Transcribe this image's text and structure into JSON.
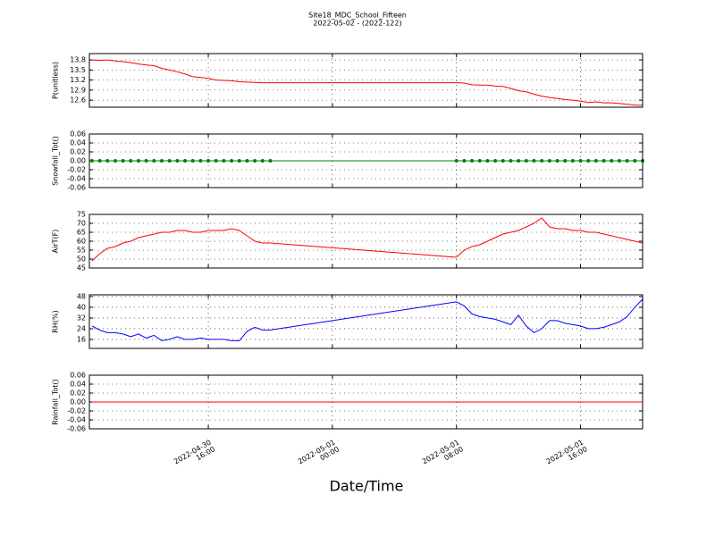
{
  "title": "Site18_MDC_School_Fifteen",
  "subtitle": "2022-05-02 - (2022-122)",
  "xlabel": "Date/Time",
  "chart_data": [
    {
      "type": "line",
      "ylabel": "P(unitless)",
      "grid": true,
      "x": [
        "2022-04-30 08:30",
        "2022-04-30 09:00",
        "2022-04-30 09:30",
        "2022-04-30 10:00",
        "2022-04-30 10:30",
        "2022-04-30 11:00",
        "2022-04-30 11:30",
        "2022-04-30 12:00",
        "2022-04-30 12:30",
        "2022-04-30 13:00",
        "2022-04-30 13:30",
        "2022-04-30 14:00",
        "2022-04-30 14:30",
        "2022-04-30 15:00",
        "2022-04-30 15:30",
        "2022-04-30 16:00",
        "2022-04-30 16:30",
        "2022-04-30 17:00",
        "2022-04-30 17:30",
        "2022-04-30 18:00",
        "2022-04-30 18:30",
        "2022-04-30 19:00",
        "2022-04-30 19:30",
        "2022-04-30 20:00",
        "2022-05-01 08:00",
        "2022-05-01 08:30",
        "2022-05-01 09:00",
        "2022-05-01 09:30",
        "2022-05-01 10:00",
        "2022-05-01 10:30",
        "2022-05-01 11:00",
        "2022-05-01 11:30",
        "2022-05-01 12:00",
        "2022-05-01 12:30",
        "2022-05-01 13:00",
        "2022-05-01 13:30",
        "2022-05-01 14:00",
        "2022-05-01 14:30",
        "2022-05-01 15:00",
        "2022-05-01 15:30",
        "2022-05-01 16:00",
        "2022-05-01 16:30",
        "2022-05-01 17:00",
        "2022-05-01 17:30",
        "2022-05-01 18:00",
        "2022-05-01 18:30",
        "2022-05-01 19:00",
        "2022-05-01 19:30",
        "2022-05-01 20:00"
      ],
      "xlim": [
        "2022-04-30 08:20",
        "2022-05-01 20:00"
      ],
      "xticks": [
        "2022-04-30 16:00",
        "2022-05-01 00:00",
        "2022-05-01 08:00",
        "2022-05-01 16:00"
      ],
      "ylim": [
        12.39,
        13.99
      ],
      "yticks": [
        12.6,
        12.9,
        13.2,
        13.5,
        13.8
      ],
      "series": [
        {
          "color": "#ff0000",
          "values": [
            13.8,
            13.79,
            13.8,
            13.77,
            13.75,
            13.72,
            13.68,
            13.65,
            13.63,
            13.55,
            13.5,
            13.45,
            13.38,
            13.3,
            13.28,
            13.25,
            13.2,
            13.19,
            13.18,
            13.15,
            13.14,
            13.13,
            13.12,
            13.12,
            13.12,
            13.11,
            13.06,
            13.05,
            13.05,
            13.02,
            13.01,
            12.95,
            12.88,
            12.85,
            12.78,
            12.72,
            12.68,
            12.65,
            12.62,
            12.6,
            12.57,
            12.53,
            12.55,
            12.52,
            12.52,
            12.5,
            12.48,
            12.45,
            12.45
          ]
        }
      ]
    },
    {
      "type": "line",
      "ylabel": "Snowfall_Tot()",
      "grid": true,
      "x": [
        "2022-04-30 08:30",
        "2022-04-30 09:00",
        "2022-04-30 09:30",
        "2022-04-30 10:00",
        "2022-04-30 10:30",
        "2022-04-30 11:00",
        "2022-04-30 11:30",
        "2022-04-30 12:00",
        "2022-04-30 12:30",
        "2022-04-30 13:00",
        "2022-04-30 13:30",
        "2022-04-30 14:00",
        "2022-04-30 14:30",
        "2022-04-30 15:00",
        "2022-04-30 15:30",
        "2022-04-30 16:00",
        "2022-04-30 16:30",
        "2022-04-30 17:00",
        "2022-04-30 17:30",
        "2022-04-30 18:00",
        "2022-04-30 18:30",
        "2022-04-30 19:00",
        "2022-04-30 19:30",
        "2022-04-30 20:00",
        "2022-05-01 08:00",
        "2022-05-01 08:30",
        "2022-05-01 09:00",
        "2022-05-01 09:30",
        "2022-05-01 10:00",
        "2022-05-01 10:30",
        "2022-05-01 11:00",
        "2022-05-01 11:30",
        "2022-05-01 12:00",
        "2022-05-01 12:30",
        "2022-05-01 13:00",
        "2022-05-01 13:30",
        "2022-05-01 14:00",
        "2022-05-01 14:30",
        "2022-05-01 15:00",
        "2022-05-01 15:30",
        "2022-05-01 16:00",
        "2022-05-01 16:30",
        "2022-05-01 17:00",
        "2022-05-01 17:30",
        "2022-05-01 18:00",
        "2022-05-01 18:30",
        "2022-05-01 19:00",
        "2022-05-01 19:30",
        "2022-05-01 20:00"
      ],
      "xlim": [
        "2022-04-30 08:20",
        "2022-05-01 20:00"
      ],
      "xticks": [
        "2022-04-30 16:00",
        "2022-05-01 00:00",
        "2022-05-01 08:00",
        "2022-05-01 16:00"
      ],
      "ylim": [
        -0.06,
        0.06
      ],
      "yticks": [
        {
          "value": -0.06,
          "label": "-0.06"
        },
        {
          "value": -0.04,
          "label": "-0.04"
        },
        {
          "value": -0.02,
          "label": "-0.02"
        },
        {
          "value": 0,
          "label": "0.00"
        },
        {
          "value": 0.02,
          "label": "0.02"
        },
        {
          "value": 0.04,
          "label": "0.04"
        },
        {
          "value": 0.06,
          "label": "0.06"
        }
      ],
      "series": [
        {
          "color": "#008000",
          "marker": "o",
          "values": [
            0,
            0,
            0,
            0,
            0,
            0,
            0,
            0,
            0,
            0,
            0,
            0,
            0,
            0,
            0,
            0,
            0,
            0,
            0,
            0,
            0,
            0,
            0,
            0,
            0,
            0,
            0,
            0,
            0,
            0,
            0,
            0,
            0,
            0,
            0,
            0,
            0,
            0,
            0,
            0,
            0,
            0,
            0,
            0,
            0,
            0,
            0,
            0,
            0
          ]
        }
      ]
    },
    {
      "type": "line",
      "ylabel": "AirT(F)",
      "grid": true,
      "x": [
        "2022-04-30 08:30",
        "2022-04-30 09:00",
        "2022-04-30 09:30",
        "2022-04-30 10:00",
        "2022-04-30 10:30",
        "2022-04-30 11:00",
        "2022-04-30 11:30",
        "2022-04-30 12:00",
        "2022-04-30 12:30",
        "2022-04-30 13:00",
        "2022-04-30 13:30",
        "2022-04-30 14:00",
        "2022-04-30 14:30",
        "2022-04-30 15:00",
        "2022-04-30 15:30",
        "2022-04-30 16:00",
        "2022-04-30 16:30",
        "2022-04-30 17:00",
        "2022-04-30 17:30",
        "2022-04-30 18:00",
        "2022-04-30 18:30",
        "2022-04-30 19:00",
        "2022-04-30 19:30",
        "2022-04-30 20:00",
        "2022-05-01 08:00",
        "2022-05-01 08:30",
        "2022-05-01 09:00",
        "2022-05-01 09:30",
        "2022-05-01 10:00",
        "2022-05-01 10:30",
        "2022-05-01 11:00",
        "2022-05-01 11:30",
        "2022-05-01 12:00",
        "2022-05-01 12:30",
        "2022-05-01 13:00",
        "2022-05-01 13:30",
        "2022-05-01 14:00",
        "2022-05-01 14:30",
        "2022-05-01 15:00",
        "2022-05-01 15:30",
        "2022-05-01 16:00",
        "2022-05-01 16:30",
        "2022-05-01 17:00",
        "2022-05-01 17:30",
        "2022-05-01 18:00",
        "2022-05-01 18:30",
        "2022-05-01 19:00",
        "2022-05-01 19:30",
        "2022-05-01 20:00"
      ],
      "xlim": [
        "2022-04-30 08:20",
        "2022-05-01 20:00"
      ],
      "xticks": [
        "2022-04-30 16:00",
        "2022-05-01 00:00",
        "2022-05-01 08:00",
        "2022-05-01 16:00"
      ],
      "ylim": [
        45,
        75
      ],
      "yticks": [
        45,
        50,
        55,
        60,
        65,
        70,
        75
      ],
      "series": [
        {
          "color": "#ff0000",
          "values": [
            49,
            53,
            56,
            57,
            59,
            60,
            62,
            63,
            64,
            65,
            65,
            66,
            66,
            65,
            65,
            66,
            66,
            66,
            67,
            66,
            63,
            60,
            59,
            59,
            51,
            55,
            57,
            58,
            60,
            62,
            64,
            65,
            66,
            68,
            70,
            73,
            68,
            67,
            67,
            66,
            66,
            65,
            65,
            64,
            63,
            62,
            61,
            60,
            59
          ]
        }
      ]
    },
    {
      "type": "line",
      "ylabel": "RH(%)",
      "grid": true,
      "x": [
        "2022-04-30 08:30",
        "2022-04-30 09:00",
        "2022-04-30 09:30",
        "2022-04-30 10:00",
        "2022-04-30 10:30",
        "2022-04-30 11:00",
        "2022-04-30 11:30",
        "2022-04-30 12:00",
        "2022-04-30 12:30",
        "2022-04-30 13:00",
        "2022-04-30 13:30",
        "2022-04-30 14:00",
        "2022-04-30 14:30",
        "2022-04-30 15:00",
        "2022-04-30 15:30",
        "2022-04-30 16:00",
        "2022-04-30 16:30",
        "2022-04-30 17:00",
        "2022-04-30 17:30",
        "2022-04-30 18:00",
        "2022-04-30 18:30",
        "2022-04-30 19:00",
        "2022-04-30 19:30",
        "2022-04-30 20:00",
        "2022-05-01 08:00",
        "2022-05-01 08:30",
        "2022-05-01 09:00",
        "2022-05-01 09:30",
        "2022-05-01 10:00",
        "2022-05-01 10:30",
        "2022-05-01 11:00",
        "2022-05-01 11:30",
        "2022-05-01 12:00",
        "2022-05-01 12:30",
        "2022-05-01 13:00",
        "2022-05-01 13:30",
        "2022-05-01 14:00",
        "2022-05-01 14:30",
        "2022-05-01 15:00",
        "2022-05-01 15:30",
        "2022-05-01 16:00",
        "2022-05-01 16:30",
        "2022-05-01 17:00",
        "2022-05-01 17:30",
        "2022-05-01 18:00",
        "2022-05-01 18:30",
        "2022-05-01 19:00",
        "2022-05-01 19:30",
        "2022-05-01 20:00"
      ],
      "xlim": [
        "2022-04-30 08:20",
        "2022-05-01 20:00"
      ],
      "xticks": [
        "2022-04-30 16:00",
        "2022-05-01 00:00",
        "2022-05-01 08:00",
        "2022-05-01 16:00"
      ],
      "ylim": [
        9.3,
        49.3
      ],
      "yticks": [
        16,
        24,
        32,
        40,
        48
      ],
      "series": [
        {
          "color": "#0000ff",
          "values": [
            26,
            23,
            21,
            21,
            20,
            18,
            20,
            17,
            19,
            15,
            16,
            18,
            16,
            16,
            17,
            16,
            16,
            16,
            15,
            15,
            22,
            25,
            23,
            23,
            44,
            41,
            35,
            33,
            32,
            31,
            29,
            27,
            34,
            26,
            21,
            24,
            30,
            30,
            28,
            27,
            26,
            24,
            24,
            25,
            27,
            29,
            33,
            40,
            46
          ]
        }
      ]
    },
    {
      "type": "line",
      "ylabel": "Rainfall_Tot()",
      "grid": true,
      "x": [
        "2022-04-30 08:30",
        "2022-04-30 09:00",
        "2022-04-30 09:30",
        "2022-04-30 10:00",
        "2022-04-30 10:30",
        "2022-04-30 11:00",
        "2022-04-30 11:30",
        "2022-04-30 12:00",
        "2022-04-30 12:30",
        "2022-04-30 13:00",
        "2022-04-30 13:30",
        "2022-04-30 14:00",
        "2022-04-30 14:30",
        "2022-04-30 15:00",
        "2022-04-30 15:30",
        "2022-04-30 16:00",
        "2022-04-30 16:30",
        "2022-04-30 17:00",
        "2022-04-30 17:30",
        "2022-04-30 18:00",
        "2022-04-30 18:30",
        "2022-04-30 19:00",
        "2022-04-30 19:30",
        "2022-04-30 20:00",
        "2022-05-01 08:00",
        "2022-05-01 08:30",
        "2022-05-01 09:00",
        "2022-05-01 09:30",
        "2022-05-01 10:00",
        "2022-05-01 10:30",
        "2022-05-01 11:00",
        "2022-05-01 11:30",
        "2022-05-01 12:00",
        "2022-05-01 12:30",
        "2022-05-01 13:00",
        "2022-05-01 13:30",
        "2022-05-01 14:00",
        "2022-05-01 14:30",
        "2022-05-01 15:00",
        "2022-05-01 15:30",
        "2022-05-01 16:00",
        "2022-05-01 16:30",
        "2022-05-01 17:00",
        "2022-05-01 17:30",
        "2022-05-01 18:00",
        "2022-05-01 18:30",
        "2022-05-01 19:00",
        "2022-05-01 19:30",
        "2022-05-01 20:00"
      ],
      "xlim": [
        "2022-04-30 08:20",
        "2022-05-01 20:00"
      ],
      "xticks": [
        "2022-04-30 16:00",
        "2022-05-01 00:00",
        "2022-05-01 08:00",
        "2022-05-01 16:00"
      ],
      "ylim": [
        -0.06,
        0.06
      ],
      "yticks": [
        {
          "value": -0.06,
          "label": "-0.06"
        },
        {
          "value": -0.04,
          "label": "-0.04"
        },
        {
          "value": -0.02,
          "label": "-0.02"
        },
        {
          "value": 0,
          "label": "0.00"
        },
        {
          "value": 0.02,
          "label": "0.02"
        },
        {
          "value": 0.04,
          "label": "0.04"
        },
        {
          "value": 0.06,
          "label": "0.06"
        }
      ],
      "series": [
        {
          "color": "#ff0000",
          "values": [
            0,
            0,
            0,
            0,
            0,
            0,
            0,
            0,
            0,
            0,
            0,
            0,
            0,
            0,
            0,
            0,
            0,
            0,
            0,
            0,
            0,
            0,
            0,
            0,
            0,
            0,
            0,
            0,
            0,
            0,
            0,
            0,
            0,
            0,
            0,
            0,
            0,
            0,
            0,
            0,
            0,
            0,
            0,
            0,
            0,
            0,
            0,
            0,
            0
          ]
        }
      ]
    }
  ]
}
